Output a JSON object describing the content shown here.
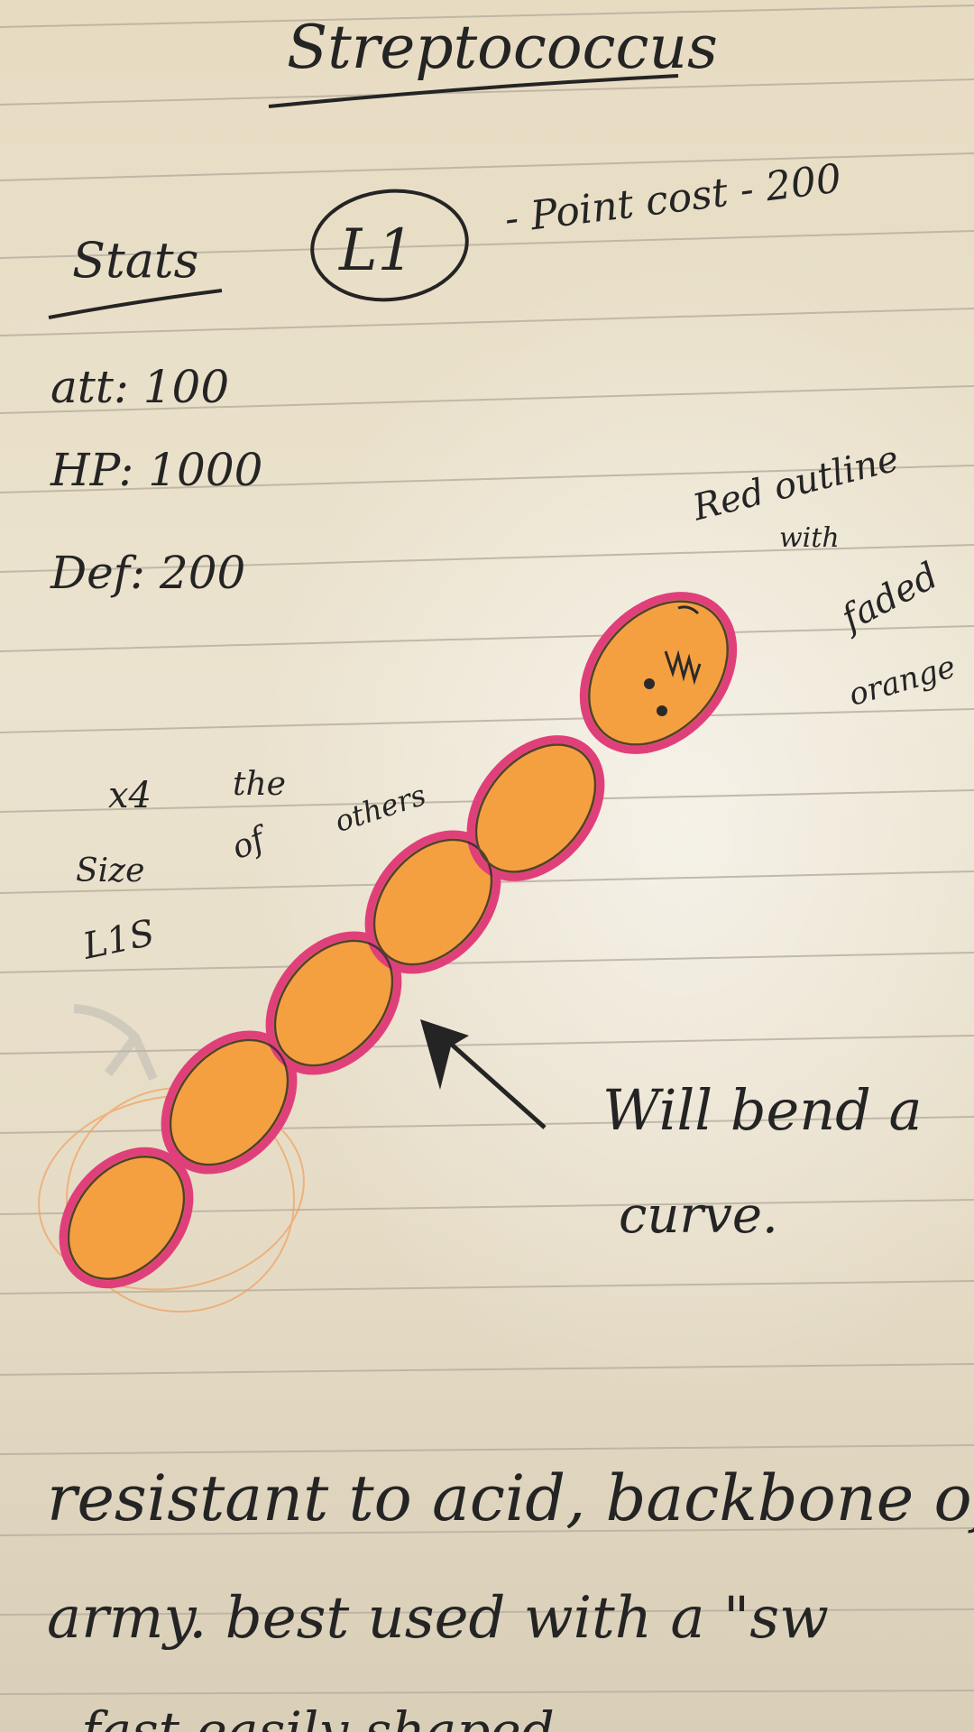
{
  "title": "Streptococcus",
  "stats": {
    "heading": "Stats",
    "level": "L1",
    "point_cost": "- Point cost - 200",
    "att": "att: 100",
    "hp": "HP: 1000",
    "def": "Def: 200"
  },
  "notes": {
    "red_outline_1": "Red outline",
    "red_outline_2": "with",
    "red_outline_3": "faded",
    "red_outline_4": "orange",
    "size_1": "x4",
    "size_2": "the",
    "size_3": "Size",
    "size_4": "of",
    "size_5": "others",
    "size_6": "L1S",
    "bend_1": "Will bend a",
    "bend_2": "curve."
  },
  "description": {
    "line_1": "resistant to acid, backbone of",
    "line_2": "army. best used with a \"sw",
    "line_3": "fast easily shaped"
  },
  "colors": {
    "ink": "#242424",
    "paper": "#e9e0c9",
    "rule_line": "#b9b0a0",
    "outline_pink": "#e0407a",
    "body_orange": "#f5a040"
  }
}
